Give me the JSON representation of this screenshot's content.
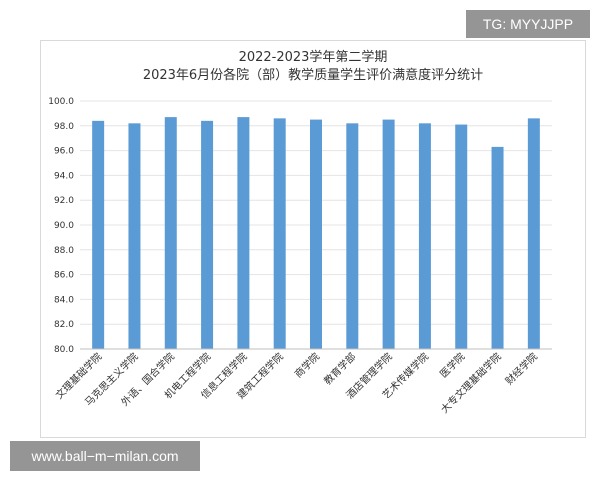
{
  "watermarks": {
    "top": "TG: MYYJJPP",
    "bottom": "www.ball−m−milan.com"
  },
  "chart_data": {
    "type": "bar",
    "title": "2022-2023学年第二学期",
    "subtitle": "2023年6月份各院（部）教学质量学生评价满意度评分统计",
    "xlabel": "",
    "ylabel": "",
    "ylim": [
      80,
      100
    ],
    "yticks": [
      "80.0",
      "82.0",
      "84.0",
      "86.0",
      "88.0",
      "90.0",
      "92.0",
      "94.0",
      "96.0",
      "98.0",
      "100.0"
    ],
    "grid": true,
    "legend": "none",
    "bar_color": "#5b9bd5",
    "categories": [
      "文理基础学院",
      "马克思主义学院",
      "外语、国合学院",
      "机电工程学院",
      "信息工程学院",
      "建筑工程学院",
      "商学院",
      "教育学部",
      "酒店管理学院",
      "艺术传媒学院",
      "医学院",
      "大专文理基础学院",
      "财经学院"
    ],
    "values": [
      98.4,
      98.2,
      98.7,
      98.4,
      98.7,
      98.6,
      98.5,
      98.2,
      98.5,
      98.2,
      98.1,
      96.3,
      98.6
    ]
  }
}
